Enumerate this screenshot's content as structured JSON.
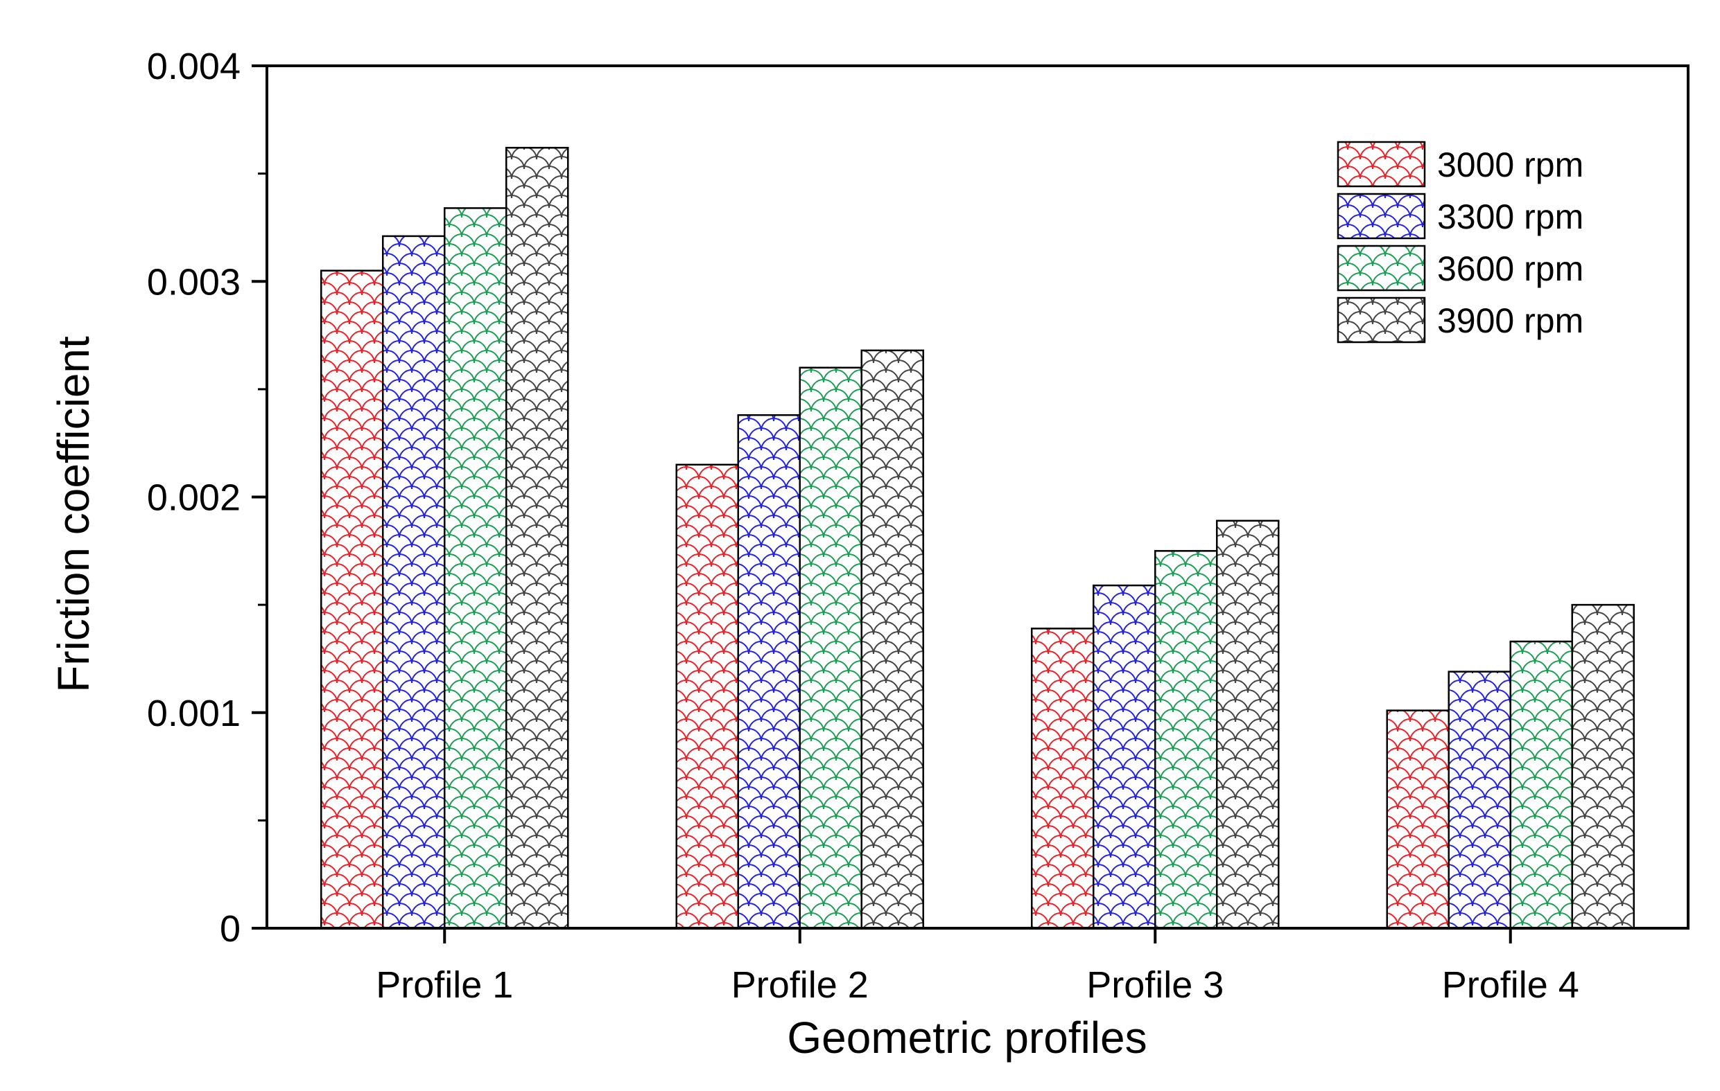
{
  "chart_data": {
    "type": "bar",
    "title": "",
    "xlabel": "Geometric profiles",
    "ylabel": "Friction coefficient",
    "categories": [
      "Profile 1",
      "Profile 2",
      "Profile 3",
      "Profile 4"
    ],
    "ylim": [
      0,
      0.004
    ],
    "yticks": [
      0,
      0.001,
      0.002,
      0.003,
      0.004
    ],
    "ytick_labels": [
      "0",
      "0.001",
      "0.002",
      "0.003",
      "0.004"
    ],
    "grid": false,
    "legend_position": "top-right",
    "fill_pattern": "scale",
    "series": [
      {
        "name": "3000 rpm",
        "color": "#e8242b",
        "values": [
          0.00305,
          0.00215,
          0.00139,
          0.00101
        ]
      },
      {
        "name": "3300 rpm",
        "color": "#2424e0",
        "values": [
          0.00321,
          0.00238,
          0.00159,
          0.00119
        ]
      },
      {
        "name": "3600 rpm",
        "color": "#1e9e55",
        "values": [
          0.00334,
          0.0026,
          0.00175,
          0.00133
        ]
      },
      {
        "name": "3900 rpm",
        "color": "#444444",
        "values": [
          0.00362,
          0.00268,
          0.00189,
          0.0015
        ]
      }
    ]
  }
}
